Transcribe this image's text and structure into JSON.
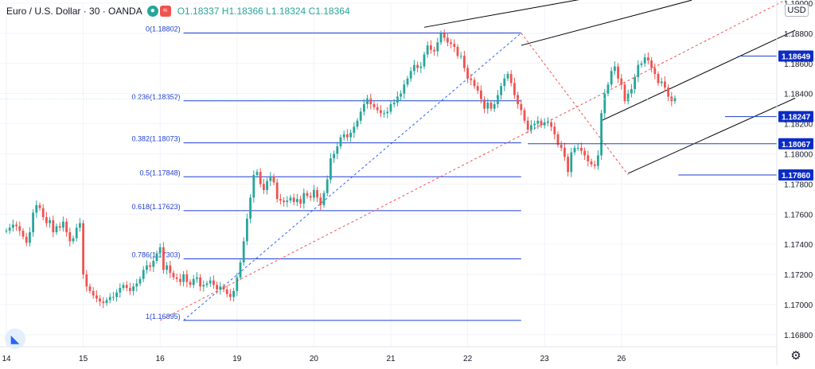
{
  "header": {
    "symbol": "Euro / U.S. Dollar · 30 · OANDA",
    "open": "O1.18337",
    "high": "H1.18366",
    "low": "L1.18324",
    "close": "C1.18364"
  },
  "currency": "USD",
  "colors": {
    "up": "#26a69a",
    "down": "#ef5350",
    "fib": "#2962ff",
    "channel": "#000000",
    "blue_line": "#1e3ed0",
    "label_bg": "#0c2cc4"
  },
  "chart_data": {
    "type": "candlestick",
    "title": "Euro / U.S. Dollar · 30 · OANDA",
    "ylim": [
      1.1672,
      1.19
    ],
    "y_ticks": [
      "1.19000",
      "1.18800",
      "1.18600",
      "1.18400",
      "1.18200",
      "1.18000",
      "1.17800",
      "1.17600",
      "1.17400",
      "1.17200",
      "1.17000",
      "1.16800"
    ],
    "x_ticks": [
      "14",
      "15",
      "16",
      "19",
      "20",
      "21",
      "22",
      "23",
      "26"
    ],
    "x_tick_bar_index": [
      0,
      23,
      46,
      69,
      92,
      115,
      138,
      161,
      184
    ],
    "closes": [
      1.1749,
      1.1751,
      1.1753,
      1.1752,
      1.1749,
      1.1745,
      1.1741,
      1.1748,
      1.1761,
      1.1766,
      1.1764,
      1.1758,
      1.1754,
      1.1756,
      1.1748,
      1.1752,
      1.1751,
      1.1755,
      1.1748,
      1.1742,
      1.1744,
      1.1751,
      1.1754,
      1.172,
      1.1712,
      1.1709,
      1.1706,
      1.1704,
      1.1702,
      1.1701,
      1.1703,
      1.1705,
      1.1705,
      1.1708,
      1.1711,
      1.1713,
      1.1711,
      1.1709,
      1.1712,
      1.1714,
      1.1717,
      1.1723,
      1.1726,
      1.1725,
      1.1729,
      1.1734,
      1.1738,
      1.1723,
      1.1726,
      1.1721,
      1.1718,
      1.1717,
      1.1715,
      1.172,
      1.1715,
      1.1713,
      1.1717,
      1.1718,
      1.1712,
      1.1713,
      1.1714,
      1.1716,
      1.1713,
      1.171,
      1.1712,
      1.171,
      1.1707,
      1.1705,
      1.1709,
      1.1718,
      1.1728,
      1.1742,
      1.1757,
      1.1771,
      1.1786,
      1.1788,
      1.178,
      1.1776,
      1.1782,
      1.1785,
      1.1781,
      1.177,
      1.1769,
      1.1768,
      1.1769,
      1.1771,
      1.1768,
      1.177,
      1.1767,
      1.1774,
      1.1772,
      1.1771,
      1.1776,
      1.1771,
      1.1766,
      1.1774,
      1.1783,
      1.1797,
      1.18,
      1.1805,
      1.1811,
      1.1813,
      1.1811,
      1.1814,
      1.1818,
      1.1822,
      1.1828,
      1.1833,
      1.1837,
      1.1833,
      1.1831,
      1.1829,
      1.1827,
      1.1827,
      1.1828,
      1.1833,
      1.1834,
      1.1838,
      1.184,
      1.1846,
      1.185,
      1.1855,
      1.1859,
      1.1857,
      1.1858,
      1.1866,
      1.1872,
      1.1869,
      1.1868,
      1.1874,
      1.188,
      1.1877,
      1.1874,
      1.1873,
      1.1871,
      1.1865,
      1.1865,
      1.1857,
      1.185,
      1.1849,
      1.1845,
      1.1842,
      1.1836,
      1.183,
      1.1834,
      1.183,
      1.1833,
      1.1839,
      1.1845,
      1.185,
      1.1853,
      1.1847,
      1.1839,
      1.1833,
      1.1829,
      1.1822,
      1.1816,
      1.1819,
      1.182,
      1.1822,
      1.1819,
      1.1821,
      1.1821,
      1.1818,
      1.1813,
      1.1806,
      1.1804,
      1.1798,
      1.1788,
      1.1801,
      1.1804,
      1.1804,
      1.1802,
      1.1799,
      1.1795,
      1.1793,
      1.1792,
      1.1799,
      1.1827,
      1.184,
      1.1846,
      1.1855,
      1.1858,
      1.185,
      1.1846,
      1.1835,
      1.184,
      1.1843,
      1.1851,
      1.1859,
      1.186,
      1.1864,
      1.1862,
      1.1857,
      1.1853,
      1.1847,
      1.1848,
      1.1844,
      1.1838,
      1.1835,
      1.1837
    ],
    "fibonacci": {
      "from_bar": 53,
      "to_bar": 154,
      "levels": [
        {
          "label": "0(1.18802)",
          "value": 1.18802
        },
        {
          "label": "0.236(1.18352)",
          "value": 1.18352
        },
        {
          "label": "0.382(1.18073)",
          "value": 1.18073
        },
        {
          "label": "0.5(1.17848)",
          "value": 1.17848
        },
        {
          "label": "0.618(1.17623)",
          "value": 1.17623
        },
        {
          "label": "0.786(1.17303)",
          "value": 1.17303
        },
        {
          "label": "1(1.16895)",
          "value": 1.16895
        }
      ]
    },
    "price_labels": [
      {
        "text": "1.18649",
        "value": 1.18649
      },
      {
        "text": "1.18247",
        "value": 1.18247
      },
      {
        "text": "1.18067",
        "value": 1.18067
      },
      {
        "text": "1.17860",
        "value": 1.1786
      }
    ],
    "horizontal_lines": [
      {
        "value": 1.18649,
        "from_bar": 219,
        "to_bar": 236
      },
      {
        "value": 1.18247,
        "from_bar": 215,
        "to_bar": 236
      },
      {
        "value": 1.18067,
        "from_bar": 156,
        "to_bar": 236
      },
      {
        "value": 1.1786,
        "from_bar": 201,
        "to_bar": 236
      }
    ],
    "current_price_line": 1.18364
  }
}
